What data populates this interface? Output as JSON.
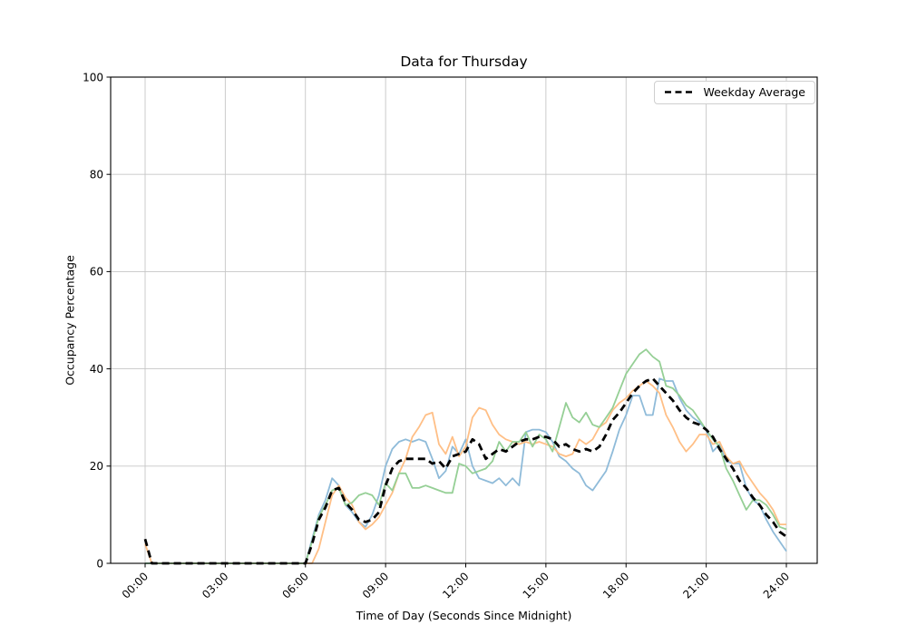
{
  "chart_data": {
    "type": "line",
    "title": "Data for Thursday",
    "xlabel": "Time of Day (Seconds Since Midnight)",
    "ylabel": "Occupancy Percentage",
    "legend": "Weekday Average",
    "legend_position": "upper right",
    "grid": true,
    "ylim": [
      0,
      100
    ],
    "y_ticks": [
      0,
      20,
      40,
      60,
      80,
      100
    ],
    "x_axis": {
      "unit": "hours",
      "start": 0,
      "step": 0.25,
      "tick_hours": [
        0,
        3,
        6,
        9,
        12,
        15,
        18,
        21,
        24
      ],
      "tick_labels": [
        "00:00",
        "03:00",
        "06:00",
        "09:00",
        "12:00",
        "15:00",
        "18:00",
        "21:00",
        "24:00"
      ]
    },
    "style": {
      "grid_color": "#c6c6c6",
      "axis_color": "#000000",
      "background": "#ffffff"
    },
    "series": [
      {
        "name": "blue-line",
        "color": "#8fbbd9",
        "width": 1.8,
        "dash": null,
        "values": [
          0,
          0,
          0,
          0,
          0,
          0,
          0,
          0,
          0,
          0,
          0,
          0,
          0,
          0,
          0,
          0,
          0,
          0,
          0,
          0,
          0,
          0,
          0,
          0,
          0,
          5,
          10,
          13,
          17.5,
          16,
          12,
          10.5,
          8.5,
          7.5,
          10,
          14,
          20,
          23.5,
          25,
          25.5,
          25,
          25.5,
          25,
          21.5,
          17.5,
          19,
          24,
          22.5,
          25.5,
          20,
          17.5,
          17,
          16.5,
          17.5,
          16,
          17.5,
          16,
          27,
          27.5,
          27.5,
          27,
          25,
          22,
          21,
          19.5,
          18.5,
          16,
          15,
          17,
          19,
          23,
          27.5,
          30.5,
          34.5,
          34.5,
          30.5,
          30.5,
          38,
          37.5,
          37.5,
          34,
          31.5,
          30,
          29,
          27.5,
          23,
          24.5,
          21,
          20.5,
          20.5,
          15.5,
          13,
          12,
          9,
          6.5,
          4.5,
          2.5
        ]
      },
      {
        "name": "orange-line",
        "color": "#ffbf86",
        "width": 1.8,
        "dash": null,
        "values": [
          4,
          0,
          0,
          0,
          0,
          0,
          0,
          0,
          0,
          0,
          0,
          0,
          0,
          0,
          0,
          0,
          0,
          0,
          0,
          0,
          0,
          0,
          0,
          0,
          0,
          0,
          3,
          8.5,
          14,
          16,
          13.5,
          12,
          8.5,
          7,
          8,
          9.5,
          12,
          14.5,
          18.5,
          21.5,
          26,
          28,
          30.5,
          31,
          24.5,
          22.5,
          26,
          22,
          24,
          30,
          32,
          31.5,
          28.5,
          26.5,
          25.5,
          25,
          24.5,
          25,
          24.5,
          25,
          24.5,
          24,
          22.5,
          22,
          22.5,
          25.5,
          24.5,
          25.5,
          28,
          29,
          31.5,
          33,
          34,
          35.5,
          36.5,
          37.5,
          36.5,
          35,
          30.5,
          28,
          25,
          23,
          24.5,
          26.5,
          26.5,
          24.5,
          25,
          22,
          20.5,
          21,
          18.5,
          16.5,
          14.5,
          13,
          11,
          8,
          8
        ]
      },
      {
        "name": "green-line",
        "color": "#95cf95",
        "width": 1.8,
        "dash": null,
        "values": [
          0,
          0,
          0,
          0,
          0,
          0,
          0,
          0,
          0,
          0,
          0,
          0,
          0,
          0,
          0,
          0,
          0,
          0,
          0,
          0,
          0,
          0,
          0,
          0,
          0,
          4.5,
          9.5,
          12,
          15,
          15.5,
          12,
          12.5,
          14,
          14.5,
          14,
          12,
          16.5,
          15,
          18.5,
          18.5,
          15.5,
          15.5,
          16,
          15.5,
          15,
          14.5,
          14.5,
          20.5,
          20,
          18.5,
          19,
          19.5,
          21,
          25,
          23,
          25,
          25,
          27,
          24,
          26.5,
          25.5,
          23,
          28,
          33,
          30,
          29,
          31,
          28.5,
          28,
          30,
          32,
          35.5,
          39,
          41,
          43,
          44,
          42.5,
          41.5,
          36.5,
          36,
          34.5,
          32.5,
          31.5,
          29.5,
          27.5,
          25.5,
          24,
          19.5,
          17,
          14,
          11,
          13,
          13,
          12,
          10,
          7.5,
          7
        ]
      },
      {
        "name": "Weekday Average",
        "color": "#000000",
        "width": 2.8,
        "dash": [
          8,
          5
        ],
        "values": [
          5,
          0,
          0,
          0,
          0,
          0,
          0,
          0,
          0,
          0,
          0,
          0,
          0,
          0,
          0,
          0,
          0,
          0,
          0,
          0,
          0,
          0,
          0,
          0,
          0,
          4,
          9,
          11.5,
          15,
          15.5,
          12.5,
          11,
          9,
          8.5,
          9,
          10.5,
          16,
          19.5,
          21,
          21.5,
          21.5,
          21.5,
          21.5,
          20.5,
          21,
          19.5,
          22,
          22.5,
          23,
          25.5,
          24.5,
          21.5,
          22.5,
          23.5,
          23,
          24,
          25,
          25.5,
          25.5,
          26,
          26,
          25.5,
          24,
          24.5,
          23.5,
          23,
          23.5,
          23,
          24,
          26.5,
          29.5,
          31,
          33,
          35,
          36.5,
          37.5,
          38,
          36.5,
          35,
          33.5,
          31.5,
          30,
          29,
          28.5,
          27.5,
          26,
          23.5,
          21.5,
          19.5,
          17,
          15.5,
          13.5,
          12,
          10,
          8.5,
          6.5,
          5.5
        ]
      }
    ]
  }
}
